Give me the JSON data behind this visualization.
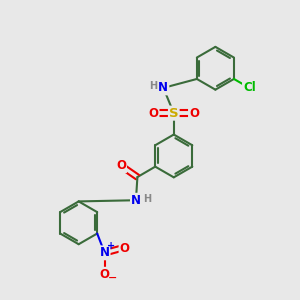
{
  "bg": "#e8e8e8",
  "bond_color": "#3a6b3a",
  "bw": 1.5,
  "atom_colors": {
    "N": "#0000ee",
    "O": "#ee0000",
    "S": "#ccaa00",
    "Cl": "#00bb00",
    "H": "#888888",
    "C": "#3a6b3a"
  },
  "fs": 8.5
}
